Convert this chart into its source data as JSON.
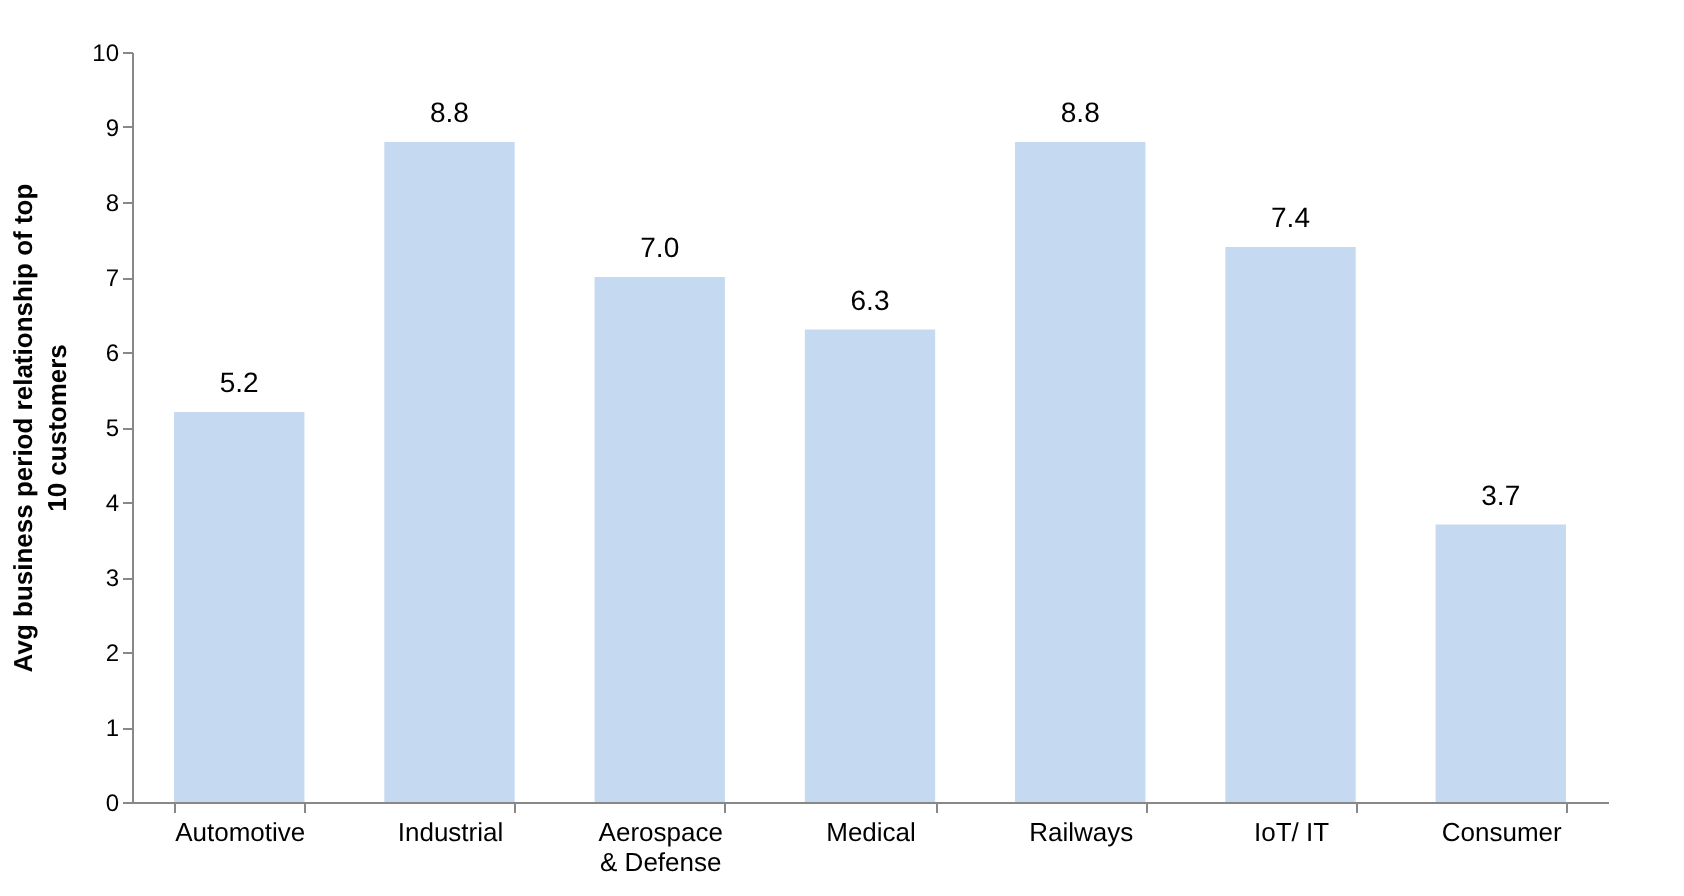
{
  "chart_data": {
    "type": "bar",
    "ylabel": "Avg business period relationship of top 10 customers",
    "categories": [
      "Automotive",
      "Industrial",
      "Aerospace & Defense",
      "Medical",
      "Railways",
      "IoT/ IT",
      "Consumer"
    ],
    "values": [
      5.2,
      8.8,
      7.0,
      6.3,
      8.8,
      7.4,
      3.7
    ],
    "value_labels": [
      "5.2",
      "8.8",
      "7.0",
      "6.3",
      "8.8",
      "7.4",
      "3.7"
    ],
    "color": "#c5d9f1",
    "ylim": [
      0,
      10
    ],
    "yticks": [
      0,
      1,
      2,
      3,
      4,
      5,
      6,
      7,
      8,
      9,
      10
    ],
    "grid": false
  }
}
